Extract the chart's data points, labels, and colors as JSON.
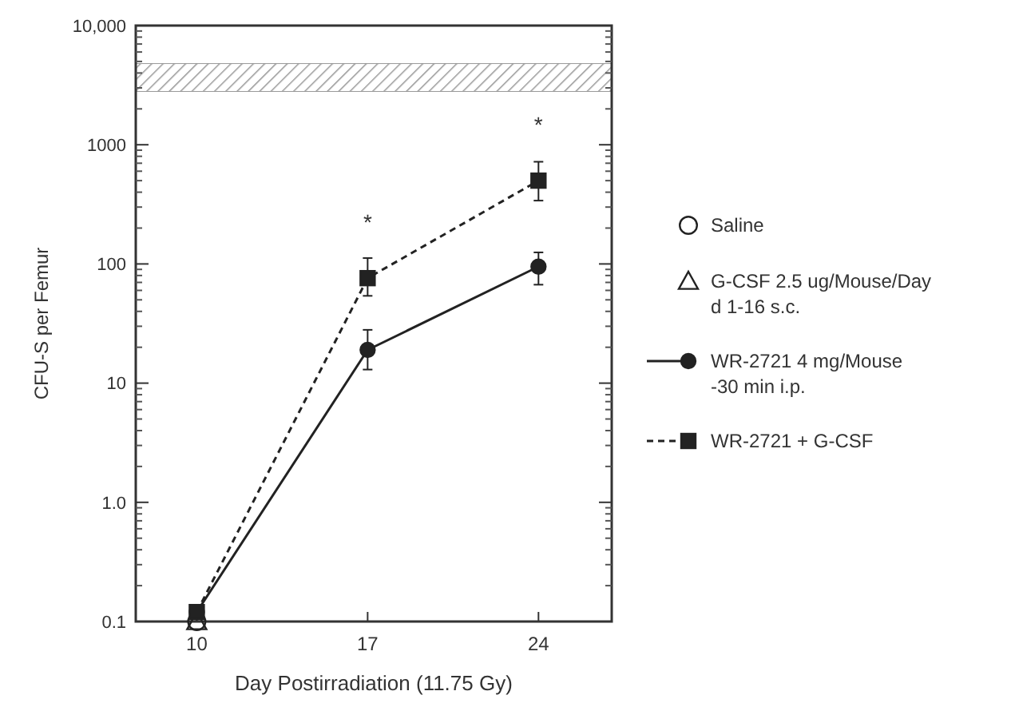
{
  "chart_data": {
    "type": "line",
    "xlabel": "Day Postirradiation (11.75 Gy)",
    "ylabel": "CFU-S per Femur",
    "log": "y",
    "x": [
      10,
      17,
      24
    ],
    "xlim": [
      7.5,
      27
    ],
    "xticks": [
      10,
      17,
      24
    ],
    "ylim": [
      0.1,
      10000
    ],
    "yticks": [
      0.1,
      {
        "value": 1,
        "label": "1.0"
      },
      10,
      100,
      1000,
      {
        "value": 10000,
        "label": "10,000"
      }
    ],
    "legend": "right",
    "grid": false,
    "series": [
      {
        "name": "Saline",
        "type": "scatter",
        "marker": "circle",
        "color": "#222222",
        "x": [
          10
        ],
        "values": [
          0.1
        ]
      },
      {
        "name": "G-CSF 2.5 ug/Mouse/Day\nd 1-16 s.c.",
        "type": "scatter",
        "marker": "triangle",
        "color": "#222222",
        "x": [
          10
        ],
        "values": [
          0.1
        ]
      },
      {
        "name": "WR-2721 4 mg/Mouse\n-30 min i.p.",
        "marker": "circle",
        "line_style": "solid",
        "color": "#222222",
        "values": [
          0.12,
          19,
          95
        ],
        "errors": [
          null,
          [
            13,
            28
          ],
          [
            67,
            125
          ]
        ]
      },
      {
        "name": "WR-2721 + G-CSF",
        "marker": "square",
        "line_style": "dashed",
        "color": "#222222",
        "values": [
          0.12,
          76,
          500
        ],
        "errors": [
          null,
          [
            54,
            112
          ],
          [
            340,
            720
          ]
        ]
      }
    ],
    "bands": [
      {
        "axis": "y",
        "from": 2800,
        "to": 4800,
        "color": "#999999"
      }
    ],
    "annotations": [
      {
        "text": "*",
        "x": 17,
        "y": 76
      },
      {
        "text": "*",
        "x": 24,
        "y": 500
      }
    ]
  }
}
